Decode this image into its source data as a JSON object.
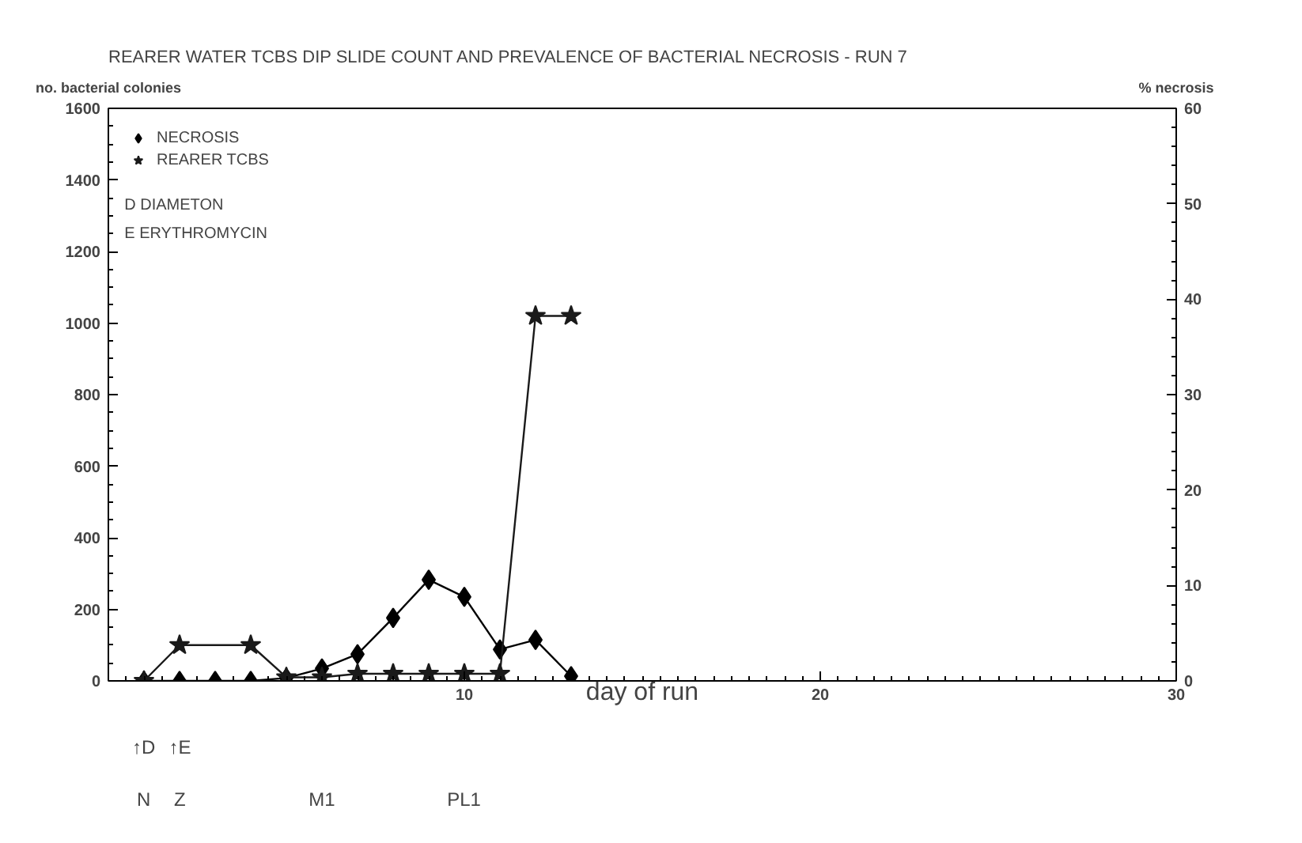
{
  "chart_data": {
    "type": "line",
    "title": "REARER WATER TCBS DIP SLIDE COUNT  AND PREVALENCE OF BACTERIAL  NECROSIS - RUN 7",
    "xlabel": "day of run",
    "ylabel": "no. bacterial colonies",
    "y2label": "% necrosis",
    "x": [
      1,
      2,
      3,
      4,
      5,
      6,
      7,
      8,
      9,
      10,
      11,
      12,
      13
    ],
    "series": [
      {
        "name": "NECROSIS",
        "color": "#000000",
        "axis": "y2",
        "marker": "diamond",
        "values": [
          0,
          0,
          0,
          0,
          0.3,
          1.3,
          2.8,
          6.6,
          10.6,
          8.8,
          3.3,
          4.3,
          0.5
        ]
      },
      {
        "name": "REARER TCBS",
        "color": "#1a1a1a",
        "marker": "star",
        "x": [
          1,
          2,
          4,
          5,
          6,
          7,
          8,
          9,
          10,
          11,
          12,
          13
        ],
        "values": [
          0,
          100,
          100,
          10,
          10,
          20,
          20,
          20,
          20,
          20,
          1020,
          1020
        ]
      }
    ],
    "xlim": [
      0,
      30
    ],
    "xticks": [
      10,
      20,
      30
    ],
    "ylim": [
      0,
      1600
    ],
    "yticks": [
      0,
      200,
      400,
      600,
      800,
      1000,
      1200,
      1400,
      1600
    ],
    "y2lim": [
      0,
      60
    ],
    "y2ticks": [
      0,
      10,
      20,
      30,
      40,
      50,
      60
    ],
    "legend": "top left",
    "grid": false,
    "line_style": "solid",
    "annotations": [
      "D DIAMETON",
      "E ERYTHROMYCIN",
      "↑D",
      "↑E",
      "N",
      "Z",
      "M1",
      "PL1"
    ]
  }
}
